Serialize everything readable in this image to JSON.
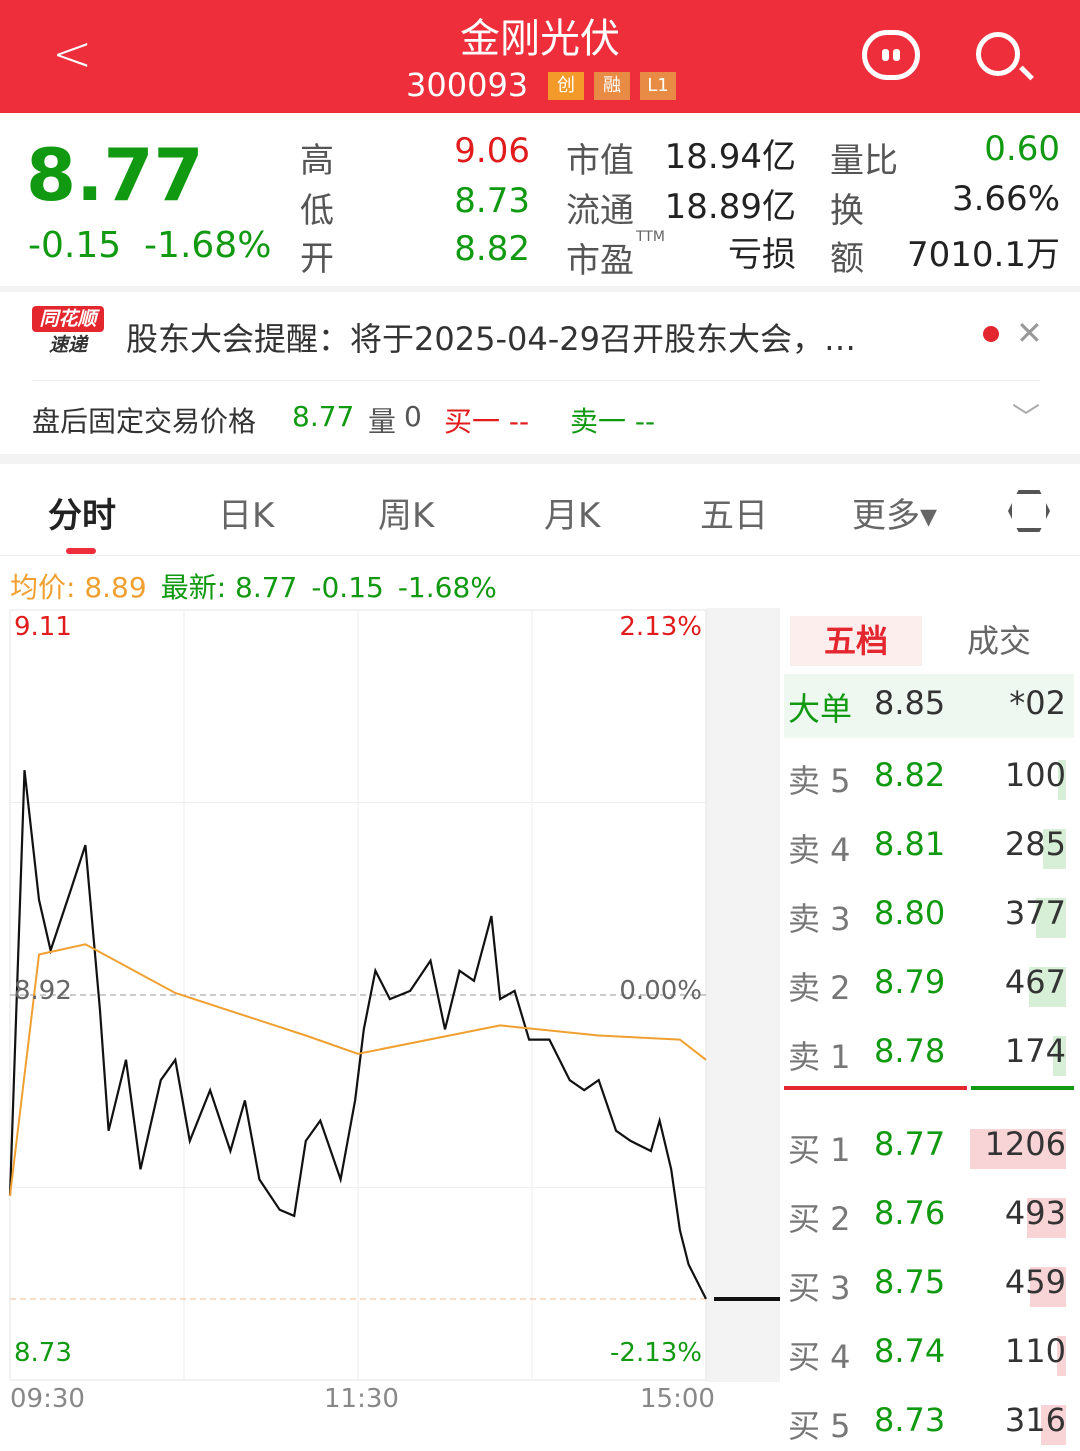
{
  "header": {
    "title": "金刚光伏",
    "code": "300093",
    "badges": [
      "创",
      "融",
      "L1"
    ]
  },
  "quote": {
    "price": "8.77",
    "change": "-0.15",
    "change_pct": "-1.68%",
    "high_label": "高",
    "high": "9.06",
    "low_label": "低",
    "low": "8.73",
    "open_label": "开",
    "open": "8.82",
    "mktcap_label": "市值",
    "mktcap": "18.94亿",
    "float_label": "流通",
    "float": "18.89亿",
    "pe_label": "市盈",
    "pe_sup": "TTM",
    "pe": "亏损",
    "volratio_label": "量比",
    "volratio": "0.60",
    "turnover_label": "换",
    "turnover": "3.66%",
    "amount_label": "额",
    "amount": "7010.1万"
  },
  "notice": {
    "logo_top": "同花顺",
    "logo_bottom": "速递",
    "text": "股东大会提醒：将于2025-04-29召开股东大会，…"
  },
  "after_hours": {
    "label": "盘后固定交易价格",
    "price": "8.77",
    "vol_label": "量",
    "vol": "0",
    "buy": "买一 --",
    "sell": "卖一 --"
  },
  "tabs": [
    "分时",
    "日K",
    "周K",
    "月K",
    "五日",
    "更多▾"
  ],
  "legend": {
    "avg": "均价: 8.89",
    "latest": "最新: 8.77",
    "change": "-0.15",
    "pct": "-1.68%"
  },
  "colors": {
    "up": "#e21c1c",
    "down": "#119a11",
    "avg_line": "#f0a030",
    "price_line": "#111111",
    "brand": "#ee2f3b"
  },
  "chart_data": {
    "type": "line",
    "ylim": [
      8.73,
      9.11
    ],
    "prev_close": 8.92,
    "y_labels": {
      "top": "9.11",
      "mid": "8.92",
      "bottom": "8.73",
      "top_pct": "2.13%",
      "mid_pct": "0.00%",
      "bottom_pct": "-2.13%"
    },
    "x_labels": [
      "09:30",
      "11:30",
      "15:00"
    ],
    "series": [
      {
        "key": "price",
        "points": [
          [
            "09:30",
            8.821
          ],
          [
            "09:35",
            9.031
          ],
          [
            "09:40",
            8.967
          ],
          [
            "09:44",
            8.942
          ],
          [
            "09:51",
            8.972
          ],
          [
            "09:56",
            8.994
          ],
          [
            "10:01",
            8.913
          ],
          [
            "10:04",
            8.853
          ],
          [
            "10:10",
            8.888
          ],
          [
            "10:15",
            8.834
          ],
          [
            "10:22",
            8.878
          ],
          [
            "10:27",
            8.888
          ],
          [
            "10:32",
            8.848
          ],
          [
            "10:39",
            8.873
          ],
          [
            "10:46",
            8.843
          ],
          [
            "10:51",
            8.868
          ],
          [
            "10:56",
            8.829
          ],
          [
            "11:03",
            8.814
          ],
          [
            "11:08",
            8.811
          ],
          [
            "11:12",
            8.848
          ],
          [
            "11:17",
            8.858
          ],
          [
            "11:24",
            8.829
          ],
          [
            "11:29",
            8.868
          ],
          [
            "13:02",
            8.903
          ],
          [
            "13:06",
            8.932
          ],
          [
            "13:11",
            8.918
          ],
          [
            "13:18",
            8.922
          ],
          [
            "13:25",
            8.937
          ],
          [
            "13:30",
            8.903
          ],
          [
            "13:35",
            8.932
          ],
          [
            "13:40",
            8.927
          ],
          [
            "13:46",
            8.959
          ],
          [
            "13:49",
            8.918
          ],
          [
            "13:54",
            8.922
          ],
          [
            "13:59",
            8.898
          ],
          [
            "14:06",
            8.898
          ],
          [
            "14:13",
            8.878
          ],
          [
            "14:18",
            8.873
          ],
          [
            "14:23",
            8.878
          ],
          [
            "14:29",
            8.853
          ],
          [
            "14:34",
            8.848
          ],
          [
            "14:41",
            8.843
          ],
          [
            "14:44",
            8.858
          ],
          [
            "14:48",
            8.834
          ],
          [
            "14:51",
            8.804
          ],
          [
            "14:54",
            8.787
          ],
          [
            "15:00",
            8.77
          ]
        ]
      },
      {
        "key": "avg",
        "points": [
          [
            "09:30",
            8.821
          ],
          [
            "09:40",
            8.94
          ],
          [
            "09:56",
            8.945
          ],
          [
            "10:27",
            8.921
          ],
          [
            "11:12",
            8.9
          ],
          [
            "11:30",
            8.891
          ],
          [
            "13:49",
            8.905
          ],
          [
            "14:23",
            8.9
          ],
          [
            "14:51",
            8.898
          ],
          [
            "15:00",
            8.888
          ]
        ]
      }
    ]
  },
  "order_book": {
    "tabs": [
      "五档",
      "成交"
    ],
    "big_order": {
      "label": "大单",
      "price": "8.85",
      "vol": "*02"
    },
    "asks": [
      {
        "label": "卖 5",
        "price": "8.82",
        "vol": "100",
        "fill": 0.08
      },
      {
        "label": "卖 4",
        "price": "8.81",
        "vol": "285",
        "fill": 0.24
      },
      {
        "label": "卖 3",
        "price": "8.80",
        "vol": "377",
        "fill": 0.31
      },
      {
        "label": "卖 2",
        "price": "8.79",
        "vol": "467",
        "fill": 0.39
      },
      {
        "label": "卖 1",
        "price": "8.78",
        "vol": "174",
        "fill": 0.14
      }
    ],
    "bids": [
      {
        "label": "买 1",
        "price": "8.77",
        "vol": "1206",
        "fill": 1.0
      },
      {
        "label": "买 2",
        "price": "8.76",
        "vol": "493",
        "fill": 0.41
      },
      {
        "label": "买 3",
        "price": "8.75",
        "vol": "459",
        "fill": 0.38
      },
      {
        "label": "买 4",
        "price": "8.74",
        "vol": "110",
        "fill": 0.09
      },
      {
        "label": "买 5",
        "price": "8.73",
        "vol": "316",
        "fill": 0.26
      }
    ],
    "buy_ratio": 0.64
  }
}
